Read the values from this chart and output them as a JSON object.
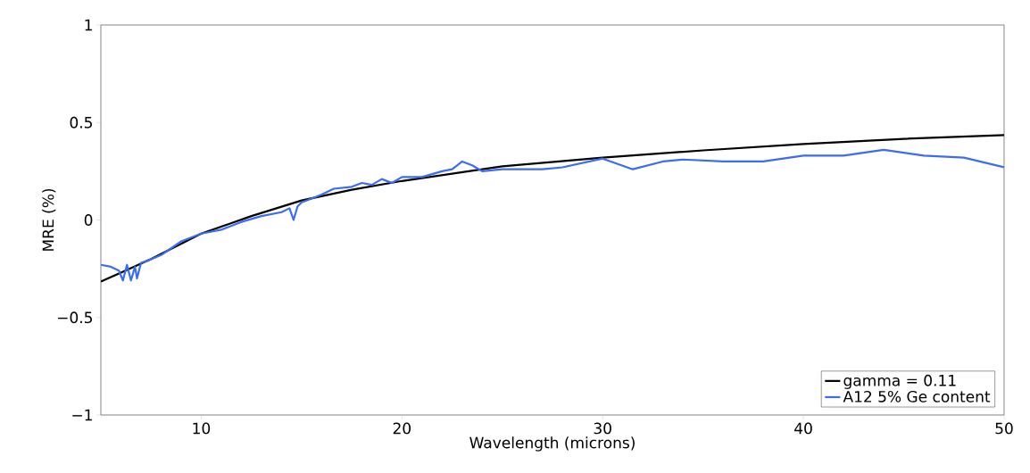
{
  "chart_data": {
    "type": "line",
    "xlabel": "Wavelength (microns)",
    "ylabel": "MRE (%)",
    "xlim": [
      5,
      50
    ],
    "ylim": [
      -1,
      1
    ],
    "xticks": [
      10,
      20,
      30,
      40,
      50
    ],
    "yticks": [
      {
        "value": -1,
        "label": "−1"
      },
      {
        "value": -0.5,
        "label": "−0.5"
      },
      0,
      0.5,
      1
    ],
    "grid": false,
    "legend": "bottom right",
    "line_style": "solid",
    "marker": "none",
    "series": [
      {
        "name": "gamma = 0.11",
        "color": "#000000",
        "x": [
          5,
          6,
          7.5,
          10,
          12.5,
          15,
          17.5,
          20,
          25,
          30,
          35,
          40,
          45,
          50
        ],
        "values": [
          -0.316,
          -0.27,
          -0.2,
          -0.07,
          0.02,
          0.1,
          0.155,
          0.2,
          0.275,
          0.32,
          0.357,
          0.39,
          0.416,
          0.435
        ]
      },
      {
        "name": "A12 5% Ge content",
        "color": "#3a6cf4",
        "x": [
          5,
          5.5,
          5.9,
          6.1,
          6.3,
          6.5,
          6.7,
          6.8,
          7,
          7.3,
          8,
          9,
          10,
          11,
          12,
          13,
          14,
          14.4,
          14.6,
          14.8,
          15,
          15.5,
          16,
          16.6,
          17.5,
          18,
          18.5,
          19,
          19.5,
          20,
          21,
          22,
          22.5,
          23,
          23.5,
          24,
          25,
          27,
          28,
          30,
          31.5,
          33,
          34,
          36,
          38,
          40,
          42,
          44,
          46,
          48,
          50
        ],
        "values": [
          -0.23,
          -0.24,
          -0.26,
          -0.31,
          -0.23,
          -0.31,
          -0.24,
          -0.3,
          -0.22,
          -0.21,
          -0.18,
          -0.11,
          -0.07,
          -0.05,
          -0.01,
          0.02,
          0.04,
          0.06,
          0.0,
          0.07,
          0.09,
          0.11,
          0.13,
          0.16,
          0.17,
          0.19,
          0.18,
          0.21,
          0.19,
          0.22,
          0.22,
          0.25,
          0.26,
          0.3,
          0.28,
          0.25,
          0.26,
          0.26,
          0.27,
          0.315,
          0.26,
          0.3,
          0.31,
          0.3,
          0.3,
          0.33,
          0.33,
          0.36,
          0.33,
          0.32,
          0.27
        ]
      }
    ]
  }
}
